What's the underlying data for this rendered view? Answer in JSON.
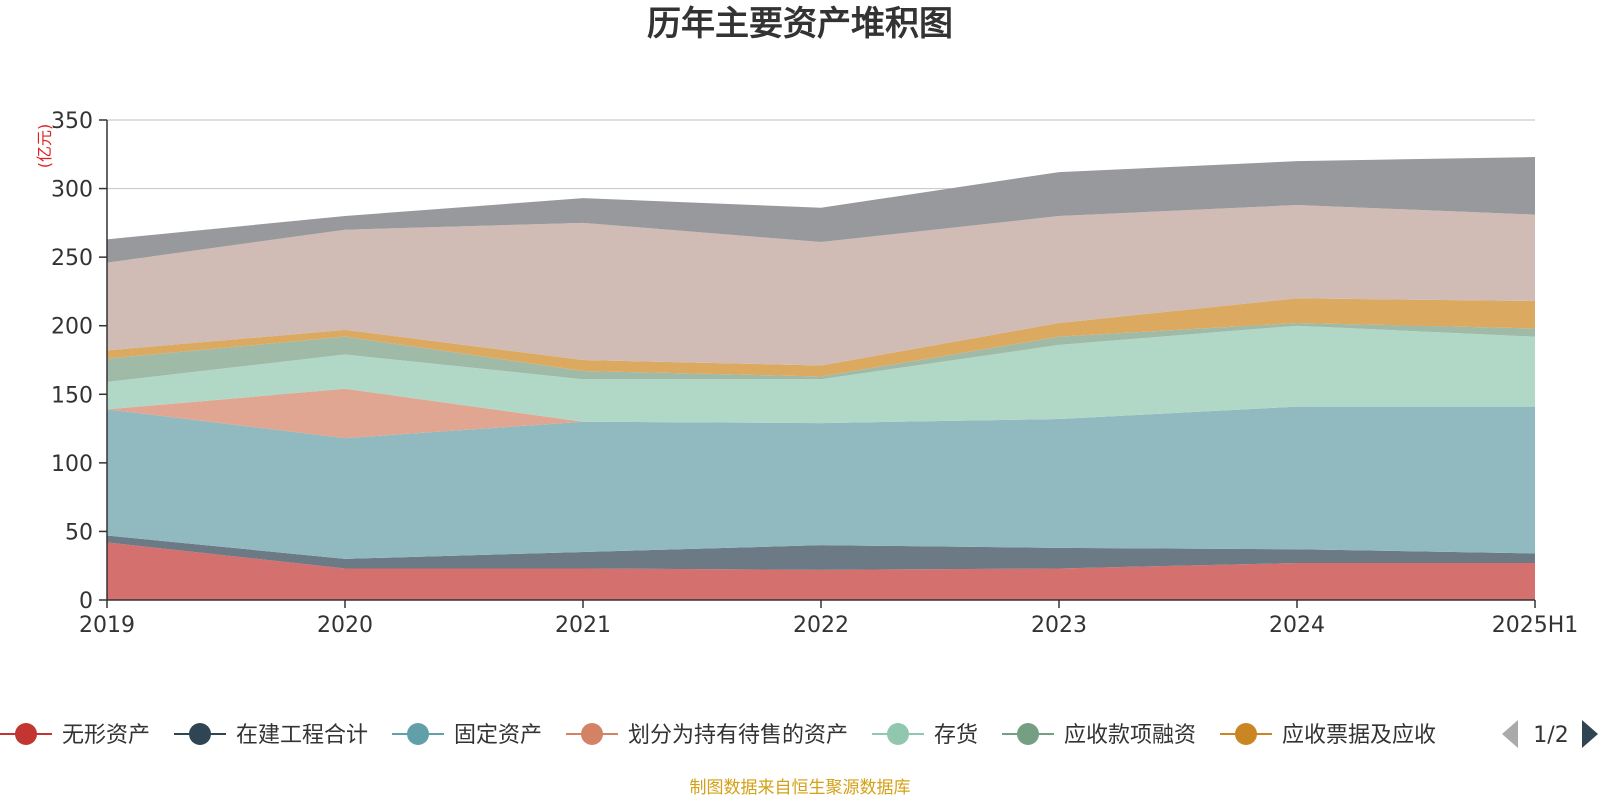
{
  "chart_data": {
    "type": "area",
    "stacked": true,
    "title": "历年主要资产堆积图",
    "unit_label": "(亿元)",
    "categories": [
      "2019",
      "2020",
      "2021",
      "2022",
      "2023",
      "2024",
      "2025H1"
    ],
    "ylim": [
      0,
      350
    ],
    "yticks": [
      0,
      50,
      100,
      150,
      200,
      250,
      300,
      350
    ],
    "grid": true,
    "legend_position": "bottom",
    "series": [
      {
        "name": "无形资产",
        "color": "#c23531",
        "area_color": "#d4706d",
        "values": [
          42,
          23,
          23,
          22,
          23,
          27,
          27
        ]
      },
      {
        "name": "在建工程合计",
        "color": "#2f4554",
        "area_color": "#6b7a85",
        "values": [
          5,
          7,
          12,
          18,
          15,
          10,
          7
        ]
      },
      {
        "name": "固定资产",
        "color": "#61a0a8",
        "area_color": "#90bac0",
        "values": [
          92,
          88,
          95,
          89,
          94,
          104,
          107
        ]
      },
      {
        "name": "划分为持有待售的资产",
        "color": "#d48265",
        "area_color": "#e0a691",
        "values": [
          0,
          36,
          0,
          0,
          0,
          0,
          0
        ]
      },
      {
        "name": "存货",
        "color": "#91c7ae",
        "area_color": "#b1d8c6",
        "values": [
          20,
          25,
          31,
          32,
          54,
          59,
          51
        ]
      },
      {
        "name": "应收款项融资",
        "color": "#749f83",
        "area_color": "#9fbaa7",
        "values": [
          17,
          13,
          6,
          2,
          6,
          2,
          6
        ]
      },
      {
        "name": "应收票据及应收",
        "color": "#ca8622",
        "area_color": "#dca960",
        "values": [
          6,
          5,
          8,
          8,
          10,
          18,
          20
        ]
      },
      {
        "name": "",
        "color": "#bda29a",
        "area_color": "#d0bbb5",
        "values": [
          64,
          73,
          100,
          90,
          78,
          68,
          63
        ]
      },
      {
        "name": "",
        "color": "#6e7074",
        "area_color": "#98999c",
        "values": [
          17,
          10,
          18,
          25,
          32,
          32,
          42
        ]
      }
    ]
  },
  "legend": {
    "page_indicator": "1/2",
    "prev_label": "previous-page",
    "next_label": "next-page"
  },
  "source_note": "制图数据来自恒生聚源数据库"
}
